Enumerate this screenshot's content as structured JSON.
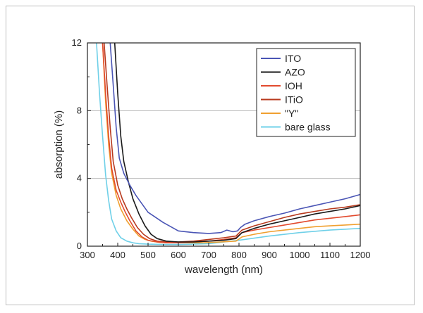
{
  "chart_data": {
    "type": "line",
    "title": "",
    "xlabel": "wavelength (nm)",
    "ylabel": "absorption (%)",
    "xlim": [
      300,
      1200
    ],
    "ylim": [
      0,
      12
    ],
    "x_ticks": [
      300,
      400,
      500,
      600,
      700,
      800,
      900,
      1000,
      1100,
      1200
    ],
    "y_ticks": [
      0,
      4,
      8,
      12
    ],
    "x_tick_labels": [
      "300",
      "400",
      "500",
      "600",
      "700",
      "800",
      "900",
      "1000",
      "1100",
      "1200"
    ],
    "y_tick_labels": [
      "0",
      "4",
      "8",
      "12"
    ],
    "grid": "horizontal at 4 and 8",
    "legend": "top-right",
    "series": [
      {
        "name": "ITO",
        "color": "#4a55b5",
        "x": [
          375,
          385,
          395,
          405,
          420,
          440,
          460,
          480,
          500,
          525,
          550,
          575,
          600,
          650,
          700,
          740,
          760,
          780,
          795,
          805,
          820,
          850,
          900,
          950,
          1000,
          1050,
          1100,
          1150,
          1200
        ],
        "y": [
          12,
          9.5,
          7,
          5.2,
          4.3,
          3.6,
          3.0,
          2.5,
          2.0,
          1.7,
          1.4,
          1.15,
          0.9,
          0.8,
          0.75,
          0.8,
          0.95,
          0.85,
          0.9,
          1.1,
          1.3,
          1.5,
          1.75,
          1.95,
          2.2,
          2.4,
          2.6,
          2.8,
          3.05
        ]
      },
      {
        "name": "AZO",
        "color": "#1a1a1a",
        "x": [
          390,
          400,
          410,
          420,
          435,
          450,
          470,
          490,
          510,
          530,
          560,
          600,
          650,
          700,
          750,
          790,
          810,
          850,
          900,
          950,
          1000,
          1050,
          1100,
          1150,
          1200
        ],
        "y": [
          12,
          9,
          6.5,
          5.0,
          3.8,
          2.8,
          1.9,
          1.2,
          0.7,
          0.45,
          0.3,
          0.25,
          0.25,
          0.3,
          0.35,
          0.45,
          0.8,
          1.05,
          1.3,
          1.5,
          1.7,
          1.9,
          2.05,
          2.2,
          2.4
        ]
      },
      {
        "name": "IOH",
        "color": "#e24a2e",
        "x": [
          350,
          360,
          370,
          380,
          395,
          410,
          425,
          440,
          460,
          480,
          500,
          530,
          560,
          600,
          650,
          700,
          750,
          790,
          810,
          850,
          900,
          950,
          1000,
          1050,
          1100,
          1150,
          1200
        ],
        "y": [
          12,
          9,
          6.5,
          4.6,
          3.3,
          2.6,
          2.0,
          1.5,
          0.9,
          0.55,
          0.35,
          0.25,
          0.2,
          0.2,
          0.25,
          0.3,
          0.4,
          0.5,
          0.8,
          0.95,
          1.1,
          1.25,
          1.4,
          1.55,
          1.65,
          1.75,
          1.85
        ]
      },
      {
        "name": "ITiO",
        "color": "#b83a1e",
        "x": [
          355,
          365,
          375,
          385,
          400,
          415,
          430,
          445,
          465,
          485,
          505,
          530,
          560,
          600,
          650,
          700,
          750,
          790,
          810,
          850,
          900,
          950,
          1000,
          1050,
          1100,
          1150,
          1200
        ],
        "y": [
          12,
          9.5,
          7,
          5,
          3.6,
          2.8,
          2.2,
          1.7,
          1.1,
          0.7,
          0.45,
          0.3,
          0.25,
          0.25,
          0.3,
          0.4,
          0.5,
          0.6,
          0.95,
          1.2,
          1.45,
          1.7,
          1.9,
          2.05,
          2.2,
          2.3,
          2.45
        ]
      },
      {
        "name": "\"Y\"",
        "color": "#f0a030",
        "x": [
          350,
          360,
          370,
          380,
          395,
          410,
          430,
          450,
          470,
          490,
          510,
          540,
          580,
          620,
          680,
          740,
          790,
          810,
          850,
          900,
          950,
          1000,
          1050,
          1100,
          1150,
          1200
        ],
        "y": [
          12,
          8.5,
          6,
          4.3,
          3.0,
          2.2,
          1.5,
          1.0,
          0.6,
          0.4,
          0.3,
          0.22,
          0.2,
          0.2,
          0.2,
          0.25,
          0.3,
          0.55,
          0.7,
          0.85,
          0.95,
          1.05,
          1.15,
          1.2,
          1.25,
          1.3
        ]
      },
      {
        "name": "bare glass",
        "color": "#6fd0e8",
        "x": [
          330,
          340,
          350,
          360,
          370,
          380,
          395,
          410,
          430,
          450,
          470,
          500,
          550,
          600,
          700,
          800,
          900,
          1000,
          1100,
          1200
        ],
        "y": [
          12,
          9,
          6.5,
          4.2,
          2.7,
          1.6,
          0.9,
          0.5,
          0.3,
          0.2,
          0.15,
          0.12,
          0.1,
          0.1,
          0.15,
          0.35,
          0.6,
          0.8,
          0.95,
          1.05
        ]
      }
    ]
  }
}
